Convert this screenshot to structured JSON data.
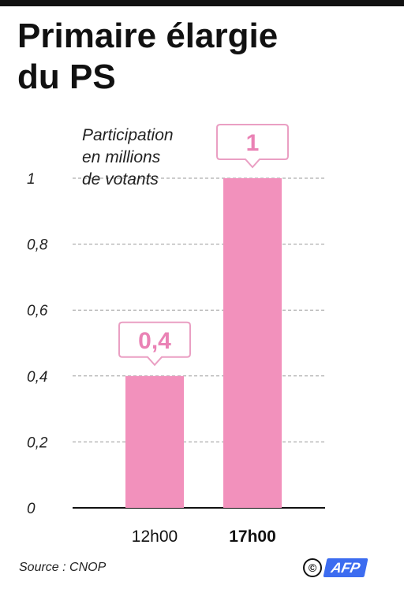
{
  "title_lines": [
    "Primaire élargie",
    "du PS"
  ],
  "source": "Source : CNOP",
  "logo_text": "AFP",
  "colors": {
    "bar": "#f291bc",
    "label_border": "#ea9fc3",
    "label_text": "#ea82b5",
    "grid": "#9a9a9a"
  },
  "chart_data": {
    "type": "bar",
    "categories": [
      "12h00",
      "17h00"
    ],
    "values": [
      0.4,
      1
    ],
    "value_labels": [
      "0,4",
      "1"
    ],
    "ylabel_lines": [
      "Participation",
      "en millions",
      "de votants"
    ],
    "ylim": [
      0,
      1
    ],
    "yticks": [
      0,
      0.2,
      0.4,
      0.6,
      0.8,
      1
    ],
    "ytick_labels": [
      "0",
      "0,2",
      "0,4",
      "0,6",
      "0,8",
      "1"
    ],
    "grid": true,
    "legend": "none"
  }
}
